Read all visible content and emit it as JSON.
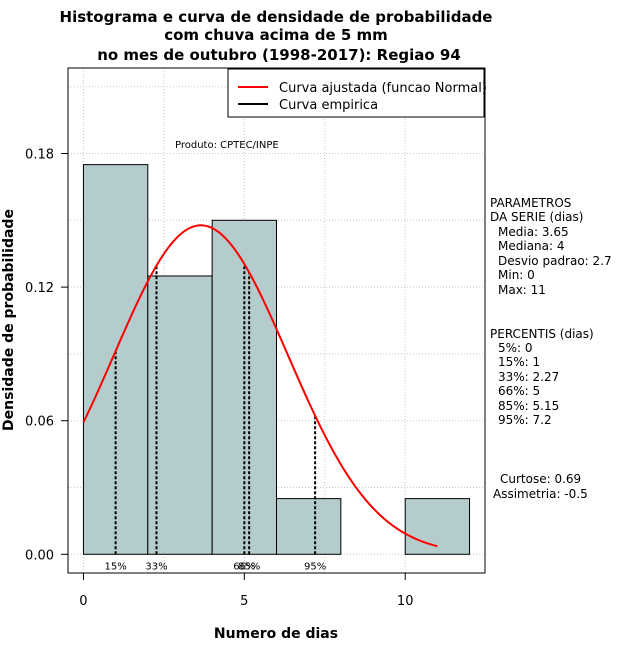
{
  "chart_data": {
    "type": "bar",
    "title": [
      "Histograma e curva de densidade de probabilidade",
      "com chuva acima de 5 mm",
      "no mes de outubro (1998-2017): Regiao 94"
    ],
    "xlabel": "Numero de dias",
    "ylabel": "Densidade de probabilidade",
    "xlim": [
      -0.48,
      12.48
    ],
    "ylim": [
      -0.0084,
      0.2184
    ],
    "xticks": [
      0,
      5,
      10
    ],
    "yticks": [
      0.0,
      0.06,
      0.12,
      0.18
    ],
    "ytick_labels": [
      "0.00",
      "0.06",
      "0.12",
      "0.18"
    ],
    "grid": true,
    "bins": [
      {
        "x0": 0,
        "x1": 2,
        "density": 0.175
      },
      {
        "x0": 2,
        "x1": 4,
        "density": 0.125
      },
      {
        "x0": 4,
        "x1": 6,
        "density": 0.15
      },
      {
        "x0": 6,
        "x1": 8,
        "density": 0.025
      },
      {
        "x0": 8,
        "x1": 10,
        "density": 0.0
      },
      {
        "x0": 10,
        "x1": 12,
        "density": 0.025
      }
    ],
    "bar_color": "#b4cccc",
    "normal_curve": {
      "mean": 3.65,
      "sd": 2.7,
      "x_from": 0,
      "x_to": 11,
      "color": "#ff0000"
    },
    "percentile_lines": [
      {
        "label": "15%",
        "x": 1
      },
      {
        "label": "33%",
        "x": 2.27
      },
      {
        "label": "66%",
        "x": 5
      },
      {
        "label": "85%",
        "x": 5.15
      },
      {
        "label": "95%",
        "x": 7.2
      }
    ],
    "legend": {
      "position": "top-right",
      "entries": [
        {
          "label": "Curva ajustada (funcao Normal)",
          "color": "#ff0000"
        },
        {
          "label": "Curva empirica",
          "color": "#000000"
        }
      ]
    },
    "annotation": "Produto: CPTEC/INPE"
  },
  "side_panel": {
    "params_lines": [
      "PARAMETROS",
      "DA SERIE (dias)",
      "Media: 3.65",
      "Mediana: 4",
      "Desvio padrao: 2.7",
      "Min: 0",
      "Max: 11"
    ],
    "percentis_lines": [
      "PERCENTIS (dias)",
      "5%: 0",
      "15%: 1",
      "33%: 2.27",
      "66%: 5",
      "85%: 5.15",
      "95%: 7.2"
    ],
    "shape_lines": [
      "Curtose: 0.69",
      "Assimetria: -0.5"
    ]
  }
}
